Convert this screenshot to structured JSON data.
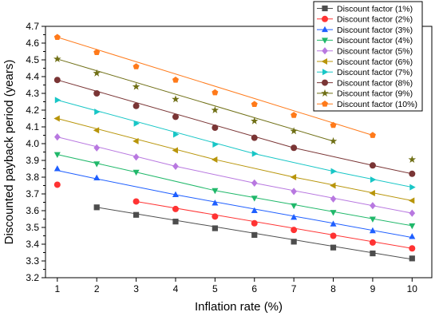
{
  "chart_data": {
    "type": "scatter",
    "xlabel": "Inflation rate (%)",
    "ylabel": "Discounted payback period (years)",
    "xlim": [
      0.7,
      10.5
    ],
    "ylim": [
      3.2,
      4.7
    ],
    "x_ticks": [
      "1",
      "2",
      "3",
      "4",
      "5",
      "6",
      "7",
      "8",
      "9",
      "10"
    ],
    "y_ticks": [
      "3.2",
      "3.3",
      "3.4",
      "3.5",
      "3.6",
      "3.7",
      "3.8",
      "3.9",
      "4.0",
      "4.1",
      "4.2",
      "4.3",
      "4.4",
      "4.5",
      "4.6",
      "4.7"
    ],
    "grid": false,
    "legend_position": "top-right",
    "series": [
      {
        "name": "Discount factor (1%)",
        "color": "#4d4d4d",
        "marker": "square",
        "x": [
          2,
          3,
          4,
          5,
          6,
          7,
          8,
          9,
          10
        ],
        "y": [
          3.62,
          3.575,
          3.535,
          3.495,
          3.455,
          3.415,
          3.38,
          3.345,
          3.315
        ],
        "fit": [
          [
            2,
            3.62
          ],
          [
            10,
            3.31
          ]
        ]
      },
      {
        "name": "Discount factor (2%)",
        "color": "#ff3333",
        "marker": "circle",
        "x": [
          1,
          3,
          4,
          5,
          6,
          7,
          8,
          9,
          10
        ],
        "y": [
          3.755,
          3.655,
          3.61,
          3.565,
          3.525,
          3.485,
          3.45,
          3.41,
          3.375
        ],
        "fit": [
          [
            3,
            3.655
          ],
          [
            10,
            3.375
          ]
        ]
      },
      {
        "name": "Discount factor (3%)",
        "color": "#1f5fff",
        "marker": "triangle-up",
        "x": [
          1,
          2,
          4,
          5,
          6,
          7,
          8,
          9,
          10
        ],
        "y": [
          3.85,
          3.795,
          3.695,
          3.645,
          3.6,
          3.56,
          3.52,
          3.48,
          3.445
        ],
        "fit": [
          [
            1,
            3.84
          ],
          [
            2,
            3.79
          ],
          [
            4,
            3.695
          ],
          [
            10,
            3.44
          ]
        ]
      },
      {
        "name": "Discount factor (4%)",
        "color": "#20b86a",
        "marker": "triangle-down",
        "x": [
          1,
          2,
          3,
          5,
          6,
          7,
          8,
          9,
          10
        ],
        "y": [
          3.935,
          3.88,
          3.83,
          3.72,
          3.675,
          3.63,
          3.59,
          3.55,
          3.51
        ],
        "fit": [
          [
            1,
            3.935
          ],
          [
            3,
            3.83
          ],
          [
            5,
            3.72
          ],
          [
            10,
            3.51
          ]
        ]
      },
      {
        "name": "Discount factor (5%)",
        "color": "#b878e0",
        "marker": "diamond",
        "x": [
          1,
          2,
          3,
          4,
          6,
          7,
          8,
          9,
          10
        ],
        "y": [
          4.04,
          3.975,
          3.92,
          3.865,
          3.765,
          3.715,
          3.67,
          3.63,
          3.585
        ],
        "fit": [
          [
            1,
            4.04
          ],
          [
            4,
            3.865
          ],
          [
            6,
            3.765
          ],
          [
            10,
            3.585
          ]
        ]
      },
      {
        "name": "Discount factor (6%)",
        "color": "#b8950a",
        "marker": "triangle-left",
        "x": [
          1,
          2,
          3,
          4,
          5,
          7,
          8,
          9,
          10
        ],
        "y": [
          4.15,
          4.08,
          4.015,
          3.96,
          3.905,
          3.8,
          3.75,
          3.705,
          3.66
        ],
        "fit": [
          [
            1,
            4.15
          ],
          [
            5,
            3.905
          ],
          [
            7,
            3.8
          ],
          [
            10,
            3.66
          ]
        ]
      },
      {
        "name": "Discount factor (7%)",
        "color": "#18c6c6",
        "marker": "triangle-right",
        "x": [
          1,
          2,
          3,
          4,
          5,
          6,
          8,
          9,
          10
        ],
        "y": [
          4.26,
          4.19,
          4.12,
          4.055,
          3.995,
          3.94,
          3.835,
          3.785,
          3.74
        ],
        "fit": [
          [
            1,
            4.26
          ],
          [
            6,
            3.94
          ],
          [
            8,
            3.835
          ],
          [
            10,
            3.74
          ]
        ]
      },
      {
        "name": "Discount factor (8%)",
        "color": "#7a3535",
        "marker": "circle",
        "x": [
          1,
          2,
          3,
          4,
          5,
          6,
          7,
          9,
          10
        ],
        "y": [
          4.38,
          4.3,
          4.225,
          4.16,
          4.095,
          4.035,
          3.975,
          3.87,
          3.82
        ],
        "fit": [
          [
            1,
            4.38
          ],
          [
            7,
            3.975
          ],
          [
            9,
            3.87
          ],
          [
            10,
            3.82
          ]
        ]
      },
      {
        "name": "Discount factor (9%)",
        "color": "#6f6f15",
        "marker": "star",
        "x": [
          1,
          2,
          3,
          4,
          5,
          6,
          7,
          8,
          10
        ],
        "y": [
          4.505,
          4.42,
          4.34,
          4.265,
          4.2,
          4.135,
          4.075,
          4.015,
          3.905
        ],
        "fit": [
          [
            1,
            4.505
          ],
          [
            8,
            4.015
          ]
        ]
      },
      {
        "name": "Discount factor (10%)",
        "color": "#ff7a1a",
        "marker": "pentagon",
        "x": [
          1,
          2,
          3,
          4,
          5,
          6,
          7,
          8,
          9
        ],
        "y": [
          4.635,
          4.545,
          4.46,
          4.38,
          4.305,
          4.235,
          4.17,
          4.11,
          4.05
        ],
        "fit": [
          [
            1,
            4.635
          ],
          [
            9,
            4.05
          ]
        ]
      }
    ]
  }
}
